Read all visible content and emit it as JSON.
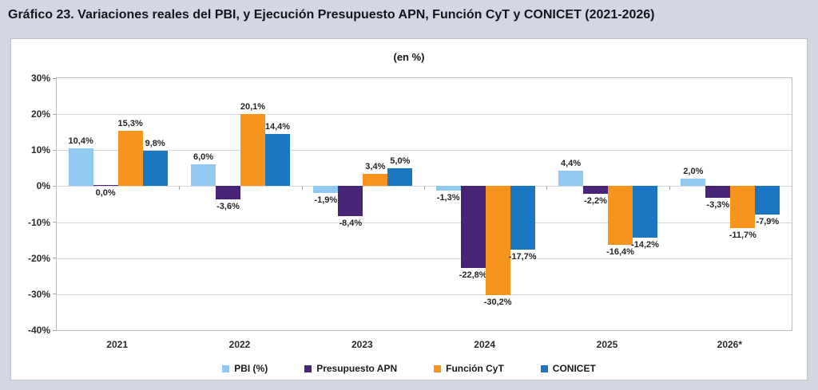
{
  "page": {
    "title": "Gráfico 23. Variaciones reales del PBI, y Ejecución Presupuesto APN, Función CyT y CONICET (2021-2026)"
  },
  "chart_data": {
    "type": "bar",
    "title": "(en %)",
    "categories": [
      "2021",
      "2022",
      "2023",
      "2024",
      "2025",
      "2026*"
    ],
    "series": [
      {
        "name": "PBI (%)",
        "color": "#92C9F0",
        "values": [
          10.4,
          6.0,
          -1.9,
          -1.3,
          4.4,
          2.0
        ],
        "labels": [
          "10,4%",
          "6,0%",
          "-1,9%",
          "-1,3%",
          "4,4%",
          "2,0%"
        ]
      },
      {
        "name": "Presupuesto APN",
        "color": "#482476",
        "values": [
          0.0,
          -3.6,
          -8.4,
          -22.8,
          -2.2,
          -3.3
        ],
        "labels": [
          "0,0%",
          "-3,6%",
          "-8,4%",
          "-22,8%",
          "-2,2%",
          "-3,3%"
        ]
      },
      {
        "name": "Función CyT",
        "color": "#F79420",
        "values": [
          15.3,
          20.1,
          3.4,
          -30.2,
          -16.4,
          -11.7
        ],
        "labels": [
          "15,3%",
          "20,1%",
          "3,4%",
          "-30,2%",
          "-16,4%",
          "-11,7%"
        ]
      },
      {
        "name": "CONICET",
        "color": "#1C77C3",
        "values": [
          9.8,
          14.4,
          5.0,
          -17.7,
          -14.2,
          -7.9
        ],
        "labels": [
          "9,8%",
          "14,4%",
          "5,0%",
          "-17,7%",
          "-14,2%",
          "-7,9%"
        ]
      }
    ],
    "ylim": [
      -40,
      30
    ],
    "ytick_values": [
      30,
      20,
      10,
      0,
      -10,
      -20,
      -30,
      -40
    ],
    "ytick_labels": [
      "30%",
      "20%",
      "10%",
      "0%",
      "-10%",
      "-20%",
      "-30%",
      "-40%"
    ],
    "grid": true,
    "legend_position": "bottom"
  }
}
